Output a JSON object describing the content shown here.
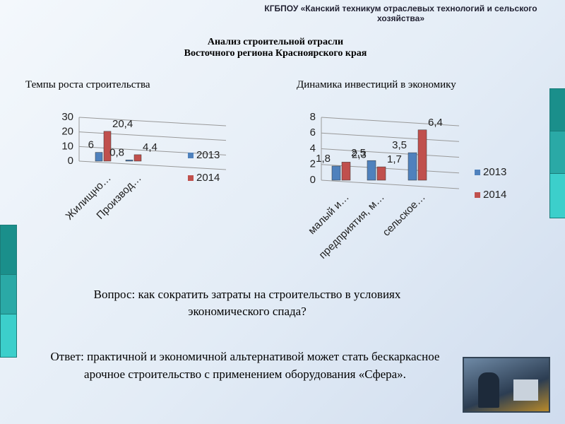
{
  "header": "КГБПОУ «Канский техникум отраслевых технологий и сельского хозяйства»",
  "title": [
    "Анализ строительной отрасли",
    "Восточного региона Красноярского края"
  ],
  "chart_data": [
    {
      "type": "bar",
      "title": "Темпы роста строительства",
      "categories": [
        "Жилищно…",
        "Производ…"
      ],
      "series": [
        {
          "name": "2013",
          "color": "#4f81bd",
          "values": [
            6,
            0.8
          ],
          "value_labels": [
            "6",
            "0,8"
          ]
        },
        {
          "name": "2014",
          "color": "#c0504d",
          "values": [
            20.4,
            4.4
          ],
          "value_labels": [
            "20,4",
            "4,4"
          ]
        }
      ],
      "ylim": [
        0,
        30
      ],
      "yticks": [
        0,
        10,
        20,
        30
      ],
      "grid": true
    },
    {
      "type": "bar",
      "title": "Динамика инвестиций  в экономику",
      "categories": [
        "малый и…",
        "предприятия, м…",
        "сельское…"
      ],
      "series": [
        {
          "name": "2013",
          "color": "#4f81bd",
          "values": [
            1.8,
            2.5,
            3.5
          ],
          "value_labels": [
            "1,8",
            "2,5",
            "3,5"
          ]
        },
        {
          "name": "2014",
          "color": "#c0504d",
          "values": [
            2.3,
            1.7,
            6.4
          ],
          "value_labels": [
            "2,3",
            "1,7",
            "6,4"
          ]
        }
      ],
      "ylim": [
        0,
        8
      ],
      "yticks": [
        0,
        2,
        4,
        6,
        8
      ],
      "grid": true
    }
  ],
  "question": "Вопрос: как сократить  затраты  на  строительство   в условиях экономического спада?",
  "answer": "Ответ: практичной и экономичной альтернативой может стать бескаркасное арочное строительство с применением оборудования «Сфера»."
}
